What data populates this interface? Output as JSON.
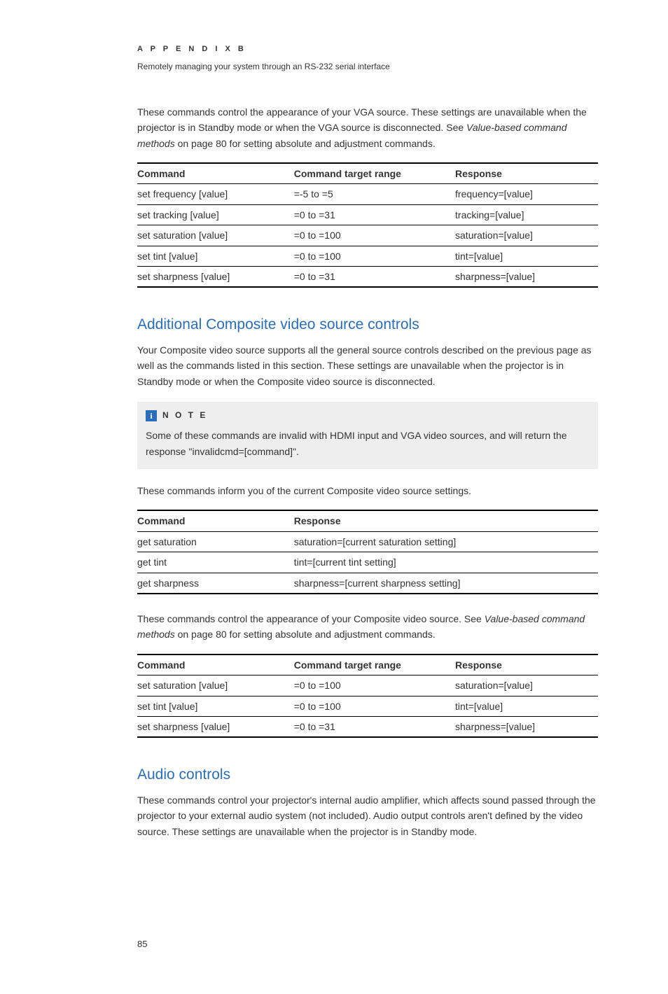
{
  "header": {
    "appendix": "A P P E N D I X   B",
    "subtitle": "Remotely managing your system through an RS-232 serial interface"
  },
  "intro": {
    "p1a": "These commands control the appearance of your VGA source. These settings are unavailable when the projector is in Standby mode or when the VGA source is disconnected. See ",
    "p1i": "Value-based command methods",
    "p1b": " on page 80 for setting absolute and adjustment commands."
  },
  "table1": {
    "h1": "Command",
    "h2": "Command target range",
    "h3": "Response",
    "rows": [
      [
        "set frequency [value]",
        "=-5 to =5",
        "frequency=[value]"
      ],
      [
        "set tracking [value]",
        "=0 to =31",
        "tracking=[value]"
      ],
      [
        "set saturation [value]",
        "=0 to =100",
        "saturation=[value]"
      ],
      [
        "set tint [value]",
        "=0 to =100",
        "tint=[value]"
      ],
      [
        "set sharpness [value]",
        "=0 to =31",
        "sharpness=[value]"
      ]
    ]
  },
  "section1": {
    "title": "Additional Composite video source controls",
    "p1": "Your Composite video source supports all the general source controls described on the previous page as well as the commands listed in this section. These settings are unavailable when the projector is in Standby mode or when the Composite video source is disconnected."
  },
  "note": {
    "icon": "i",
    "label": "N O T E",
    "text": "Some of these commands are invalid with HDMI input and VGA video sources, and will return the response \"invalidcmd=[command]\"."
  },
  "para2": "These commands inform you of the current Composite video source settings.",
  "table2": {
    "h1": "Command",
    "h2": "Response",
    "rows": [
      [
        "get saturation",
        "saturation=[current saturation setting]"
      ],
      [
        "get tint",
        "tint=[current tint setting]"
      ],
      [
        "get sharpness",
        "sharpness=[current sharpness setting]"
      ]
    ]
  },
  "para3a": "These commands control the appearance of your Composite video source. See ",
  "para3i": "Value-based command methods",
  "para3b": " on page 80 for setting absolute and adjustment commands.",
  "table3": {
    "h1": "Command",
    "h2": "Command target range",
    "h3": "Response",
    "rows": [
      [
        "set saturation [value]",
        "=0 to =100",
        "saturation=[value]"
      ],
      [
        "set tint [value]",
        "=0 to =100",
        "tint=[value]"
      ],
      [
        "set sharpness [value]",
        "=0 to =31",
        "sharpness=[value]"
      ]
    ]
  },
  "section2": {
    "title": "Audio controls",
    "p1": "These commands control your projector's internal audio amplifier, which affects sound passed through the projector to your external audio system (not included). Audio output controls aren't defined by the video source. These settings are unavailable when the projector is in Standby mode."
  },
  "pageNumber": "85",
  "layout": {
    "col3": {
      "w1": "34%",
      "w2": "35%",
      "w3": "31%"
    },
    "col2": {
      "w1": "34%",
      "w2": "66%"
    }
  }
}
